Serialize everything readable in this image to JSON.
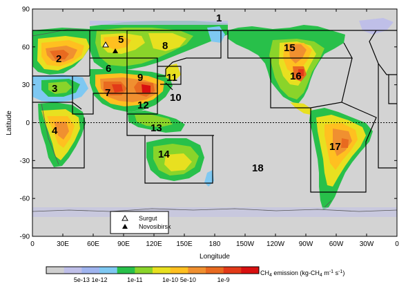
{
  "map": {
    "x_axis_label": "Longitude",
    "y_axis_label": "Latitude",
    "x_ticks": [
      "0",
      "30E",
      "60E",
      "90E",
      "120E",
      "150E",
      "180",
      "150W",
      "120W",
      "90W",
      "60W",
      "30W",
      "0"
    ],
    "y_ticks": [
      "90",
      "60",
      "30",
      "0",
      "-30",
      "-60",
      "-90"
    ],
    "regions": [
      "1",
      "2",
      "3",
      "4",
      "5",
      "6",
      "7",
      "8",
      "9",
      "10",
      "11",
      "12",
      "13",
      "14",
      "15",
      "16",
      "17",
      "18"
    ],
    "legend": {
      "items": [
        {
          "symbol": "△",
          "label": "Surgut"
        },
        {
          "symbol": "▲",
          "label": "Novosibirsk"
        }
      ]
    },
    "colorbar": {
      "title_prefix": "CH",
      "title_sub": "4",
      "title_mid": " emission (kg-CH",
      "title_sub2": "4",
      "title_mid2": " m",
      "title_sup1": "-1",
      "title_mid3": " s",
      "title_sup2": "-1",
      "title_end": ")",
      "tick_labels": [
        "5e-13",
        "1e-12",
        "1e-11",
        "1e-10",
        "5e-10",
        "1e-9"
      ],
      "colors": [
        "#cfcfcf",
        "#bfbfe8",
        "#9fb4ef",
        "#7ec8f2",
        "#28c04a",
        "#8ad42a",
        "#e8e020",
        "#ffc020",
        "#f09030",
        "#e86a20",
        "#e23a18",
        "#d81010"
      ]
    },
    "colors": {
      "ocean": "#d3d3d3",
      "coast": "#555555"
    }
  }
}
